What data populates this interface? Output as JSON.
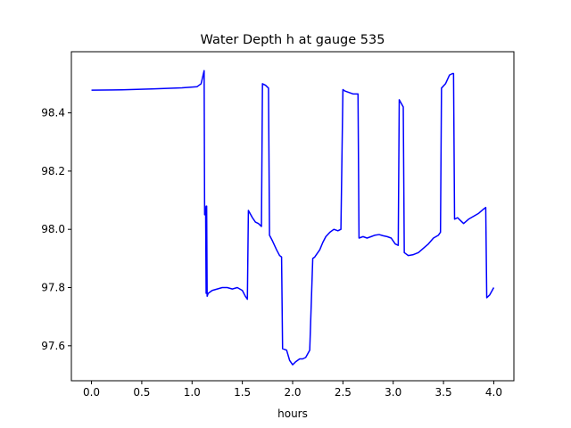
{
  "chart_data": {
    "type": "line",
    "title": "Water Depth h at gauge 535",
    "xlabel": "hours",
    "ylabel": "",
    "xlim": [
      -0.2,
      4.2
    ],
    "ylim": [
      97.48,
      98.61
    ],
    "xticks": [
      0.0,
      0.5,
      1.0,
      1.5,
      2.0,
      2.5,
      3.0,
      3.5,
      4.0
    ],
    "xtick_labels": [
      "0.0",
      "0.5",
      "1.0",
      "1.5",
      "2.0",
      "2.5",
      "3.0",
      "3.5",
      "4.0"
    ],
    "yticks": [
      97.6,
      97.8,
      98.0,
      98.2,
      98.4
    ],
    "ytick_labels": [
      "97.6",
      "97.8",
      "98.0",
      "98.2",
      "98.4"
    ],
    "grid": false,
    "series": [
      {
        "color": "#0000ff",
        "x": [
          0.0,
          0.3,
          0.6,
          0.9,
          1.05,
          1.09,
          1.11,
          1.12,
          1.125,
          1.13,
          1.135,
          1.14,
          1.145,
          1.15,
          1.16,
          1.2,
          1.25,
          1.3,
          1.35,
          1.4,
          1.45,
          1.5,
          1.53,
          1.55,
          1.56,
          1.6,
          1.63,
          1.66,
          1.69,
          1.7,
          1.73,
          1.76,
          1.77,
          1.8,
          1.84,
          1.87,
          1.89,
          1.9,
          1.94,
          1.97,
          2.0,
          2.03,
          2.07,
          2.1,
          2.13,
          2.17,
          2.2,
          2.22,
          2.23,
          2.27,
          2.3,
          2.33,
          2.37,
          2.41,
          2.45,
          2.48,
          2.5,
          2.52,
          2.56,
          2.6,
          2.65,
          2.66,
          2.7,
          2.74,
          2.78,
          2.82,
          2.86,
          2.9,
          2.94,
          2.98,
          3.02,
          3.05,
          3.06,
          3.1,
          3.11,
          3.15,
          3.2,
          3.25,
          3.3,
          3.35,
          3.4,
          3.45,
          3.47,
          3.48,
          3.52,
          3.56,
          3.59,
          3.6,
          3.61,
          3.64,
          3.67,
          3.7,
          3.75,
          3.8,
          3.85,
          3.9,
          3.92,
          3.93,
          3.96,
          4.0
        ],
        "y": [
          98.478,
          98.479,
          98.482,
          98.486,
          98.49,
          98.5,
          98.53,
          98.545,
          98.05,
          98.08,
          98.06,
          97.78,
          98.08,
          97.77,
          97.78,
          97.79,
          97.795,
          97.8,
          97.8,
          97.795,
          97.8,
          97.79,
          97.77,
          97.76,
          98.065,
          98.04,
          98.025,
          98.02,
          98.01,
          98.5,
          98.495,
          98.485,
          97.98,
          97.96,
          97.93,
          97.91,
          97.905,
          97.59,
          97.585,
          97.55,
          97.535,
          97.545,
          97.555,
          97.555,
          97.56,
          97.585,
          97.9,
          97.905,
          97.91,
          97.93,
          97.955,
          97.975,
          97.99,
          98.0,
          97.995,
          98.0,
          98.48,
          98.475,
          98.47,
          98.465,
          98.465,
          97.97,
          97.975,
          97.97,
          97.975,
          97.98,
          97.982,
          97.978,
          97.975,
          97.97,
          97.95,
          97.945,
          98.445,
          98.42,
          97.92,
          97.91,
          97.913,
          97.92,
          97.935,
          97.95,
          97.97,
          97.98,
          97.99,
          98.485,
          98.5,
          98.53,
          98.535,
          98.535,
          98.035,
          98.04,
          98.03,
          98.02,
          98.035,
          98.045,
          98.055,
          98.07,
          98.075,
          97.765,
          97.775,
          97.8
        ]
      }
    ]
  }
}
